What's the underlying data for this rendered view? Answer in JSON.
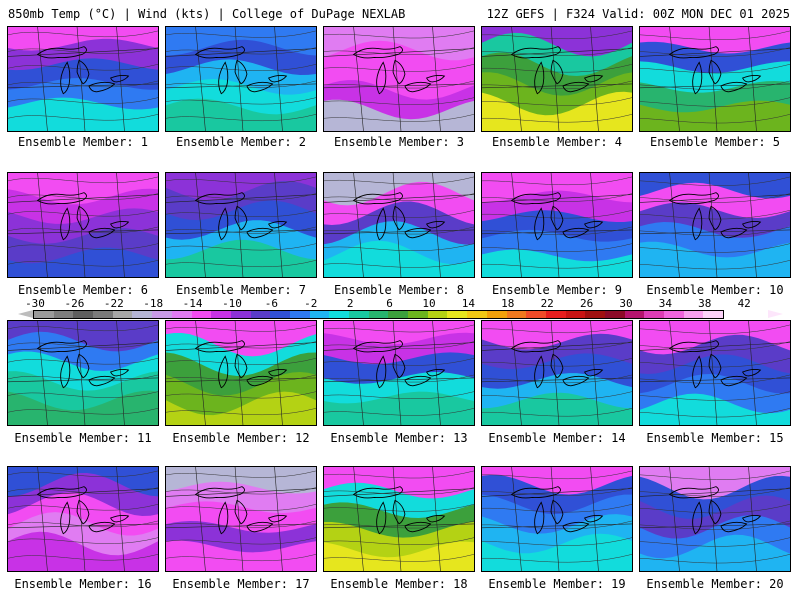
{
  "header": {
    "left_title": "850mb Temp (°C) | Wind (kts) | College of DuPage NEXLAB",
    "right_title": "12Z GEFS | F324 Valid: 00Z MON DEC 01 2025"
  },
  "colorbar": {
    "tick_labels": [
      "-30",
      "-26",
      "-22",
      "-18",
      "-14",
      "-10",
      "-6",
      "-2",
      "2",
      "6",
      "10",
      "14",
      "18",
      "22",
      "26",
      "30",
      "34",
      "38",
      "42"
    ],
    "colors": [
      "#9b9b9b",
      "#7d7d7d",
      "#5f5f5f",
      "#7a7a7a",
      "#a8a8a8",
      "#b6b6d6",
      "#c89be6",
      "#e07cf2",
      "#f24cf2",
      "#c832e6",
      "#8c32d8",
      "#5a3cc8",
      "#3050d6",
      "#2f7af2",
      "#1fb4f2",
      "#12dcdc",
      "#19c8a0",
      "#28b46e",
      "#3ca03c",
      "#6cb41e",
      "#b4d214",
      "#e6e61e",
      "#f2c814",
      "#f2a00a",
      "#f0781e",
      "#f04b28",
      "#e61e1e",
      "#c81414",
      "#a01010",
      "#8c0a28",
      "#b4146e",
      "#dc3cb4",
      "#f064dc",
      "#f8a0ee",
      "#fcd2f8"
    ]
  },
  "members": [
    {
      "label": "Ensemble Member: 1",
      "colors": [
        "#f24cf2",
        "#8c32d8",
        "#3050d6",
        "#2f7af2",
        "#12dcdc"
      ]
    },
    {
      "label": "Ensemble Member: 2",
      "colors": [
        "#2f7af2",
        "#3050d6",
        "#1fb4f2",
        "#12dcdc",
        "#19c8a0"
      ]
    },
    {
      "label": "Ensemble Member: 3",
      "colors": [
        "#e07cf2",
        "#f24cf2",
        "#f24cf2",
        "#c832e6",
        "#b6b6d6"
      ]
    },
    {
      "label": "Ensemble Member: 4",
      "colors": [
        "#8c32d8",
        "#19c8a0",
        "#3ca03c",
        "#6cb41e",
        "#e6e61e"
      ]
    },
    {
      "label": "Ensemble Member: 5",
      "colors": [
        "#f24cf2",
        "#3050d6",
        "#12dcdc",
        "#28b46e",
        "#6cb41e"
      ]
    },
    {
      "label": "Ensemble Member: 6",
      "colors": [
        "#f24cf2",
        "#c832e6",
        "#8c32d8",
        "#5a3cc8",
        "#3050d6"
      ]
    },
    {
      "label": "Ensemble Member: 7",
      "colors": [
        "#8c32d8",
        "#5a3cc8",
        "#3050d6",
        "#1fb4f2",
        "#19c8a0"
      ]
    },
    {
      "label": "Ensemble Member: 8",
      "colors": [
        "#b6b6d6",
        "#f24cf2",
        "#5a3cc8",
        "#1fb4f2",
        "#12dcdc"
      ]
    },
    {
      "label": "Ensemble Member: 9",
      "colors": [
        "#f24cf2",
        "#c832e6",
        "#3050d6",
        "#2f7af2",
        "#12dcdc"
      ]
    },
    {
      "label": "Ensemble Member: 10",
      "colors": [
        "#3050d6",
        "#f24cf2",
        "#5a3cc8",
        "#2f7af2",
        "#1fb4f2"
      ]
    },
    {
      "label": "Ensemble Member: 11",
      "colors": [
        "#5a3cc8",
        "#2f7af2",
        "#12dcdc",
        "#19c8a0",
        "#28b46e"
      ]
    },
    {
      "label": "Ensemble Member: 12",
      "colors": [
        "#f24cf2",
        "#12dcdc",
        "#3ca03c",
        "#6cb41e",
        "#b4d214"
      ]
    },
    {
      "label": "Ensemble Member: 13",
      "colors": [
        "#f24cf2",
        "#c832e6",
        "#3050d6",
        "#12dcdc",
        "#19c8a0"
      ]
    },
    {
      "label": "Ensemble Member: 14",
      "colors": [
        "#f24cf2",
        "#5a3cc8",
        "#3050d6",
        "#1fb4f2",
        "#19c8a0"
      ]
    },
    {
      "label": "Ensemble Member: 15",
      "colors": [
        "#f24cf2",
        "#5a3cc8",
        "#3050d6",
        "#2f7af2",
        "#12dcdc"
      ]
    },
    {
      "label": "Ensemble Member: 16",
      "colors": [
        "#3050d6",
        "#8c32d8",
        "#f24cf2",
        "#e07cf2",
        "#c832e6"
      ]
    },
    {
      "label": "Ensemble Member: 17",
      "colors": [
        "#b6b6d6",
        "#e07cf2",
        "#f24cf2",
        "#8c32d8",
        "#f24cf2"
      ]
    },
    {
      "label": "Ensemble Member: 18",
      "colors": [
        "#f24cf2",
        "#12dcdc",
        "#3ca03c",
        "#b4d214",
        "#e6e61e"
      ]
    },
    {
      "label": "Ensemble Member: 19",
      "colors": [
        "#f24cf2",
        "#3050d6",
        "#2f7af2",
        "#1fb4f2",
        "#12dcdc"
      ]
    },
    {
      "label": "Ensemble Member: 20",
      "colors": [
        "#e07cf2",
        "#3050d6",
        "#5a3cc8",
        "#2f7af2",
        "#1fb4f2"
      ]
    }
  ]
}
